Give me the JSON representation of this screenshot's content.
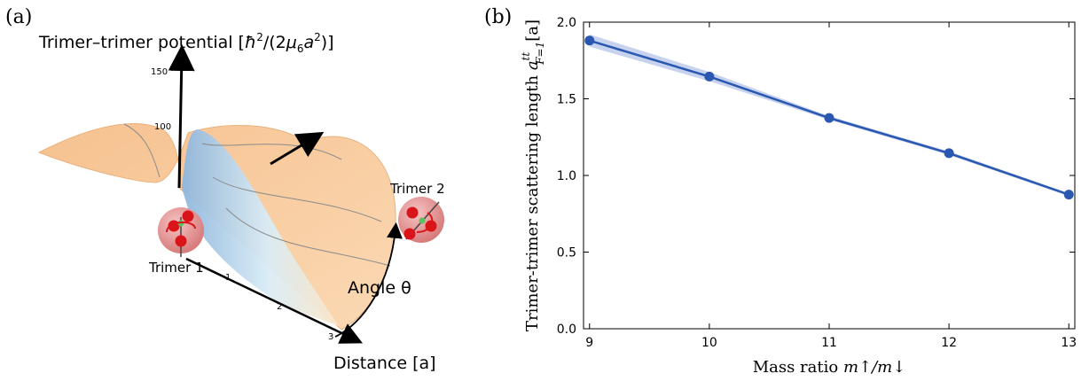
{
  "panel_a": {
    "label": "(a)",
    "title_prefix": "Trimer–trimer potential [",
    "title_hbar": "ħ",
    "title_sup1": "2",
    "title_mid": "/(2",
    "title_mu": "μ",
    "title_sub": "6",
    "title_a": "a",
    "title_sup2": "2",
    "title_suffix": ")]",
    "z_ticks": [
      "150",
      "100"
    ],
    "distance_ticks": [
      "1",
      "2",
      "3"
    ],
    "trimer1_label": "Trimer 1",
    "trimer2_label": "Trimer 2",
    "angle_label": "Angle θ",
    "distance_label": "Distance [a]",
    "colors": {
      "surface": "#f7c99a",
      "ridge": "#a9cbe6",
      "sphere": "#e88a8a",
      "atom": "#d9151a",
      "center_atom": "#5cc05c"
    }
  },
  "panel_b": {
    "label": "(b)",
    "ylabel_main": "Trimer-trimer scattering length ",
    "ylabel_sym": "a",
    "ylabel_sup": "tt",
    "ylabel_sub": "F=1",
    "ylabel_unit": "[a]",
    "xlabel_main": "Mass ratio ",
    "xlabel_sym": "m↑/m↓",
    "chart_data": {
      "type": "line",
      "x": [
        9,
        10,
        11,
        12,
        13
      ],
      "y": [
        1.88,
        1.645,
        1.375,
        1.145,
        0.875
      ],
      "band_half_width": [
        0.04,
        0.03,
        0.012,
        0.012,
        0.01
      ],
      "xlim": [
        8.95,
        13.05
      ],
      "ylim": [
        0.0,
        2.0
      ],
      "xticks": [
        9,
        10,
        11,
        12,
        13
      ],
      "yticks": [
        "0.0",
        "0.5",
        "1.0",
        "1.5",
        "2.0"
      ],
      "line_color": "#2a57b0",
      "band_color": "#b8c7ea",
      "grid": false
    }
  }
}
